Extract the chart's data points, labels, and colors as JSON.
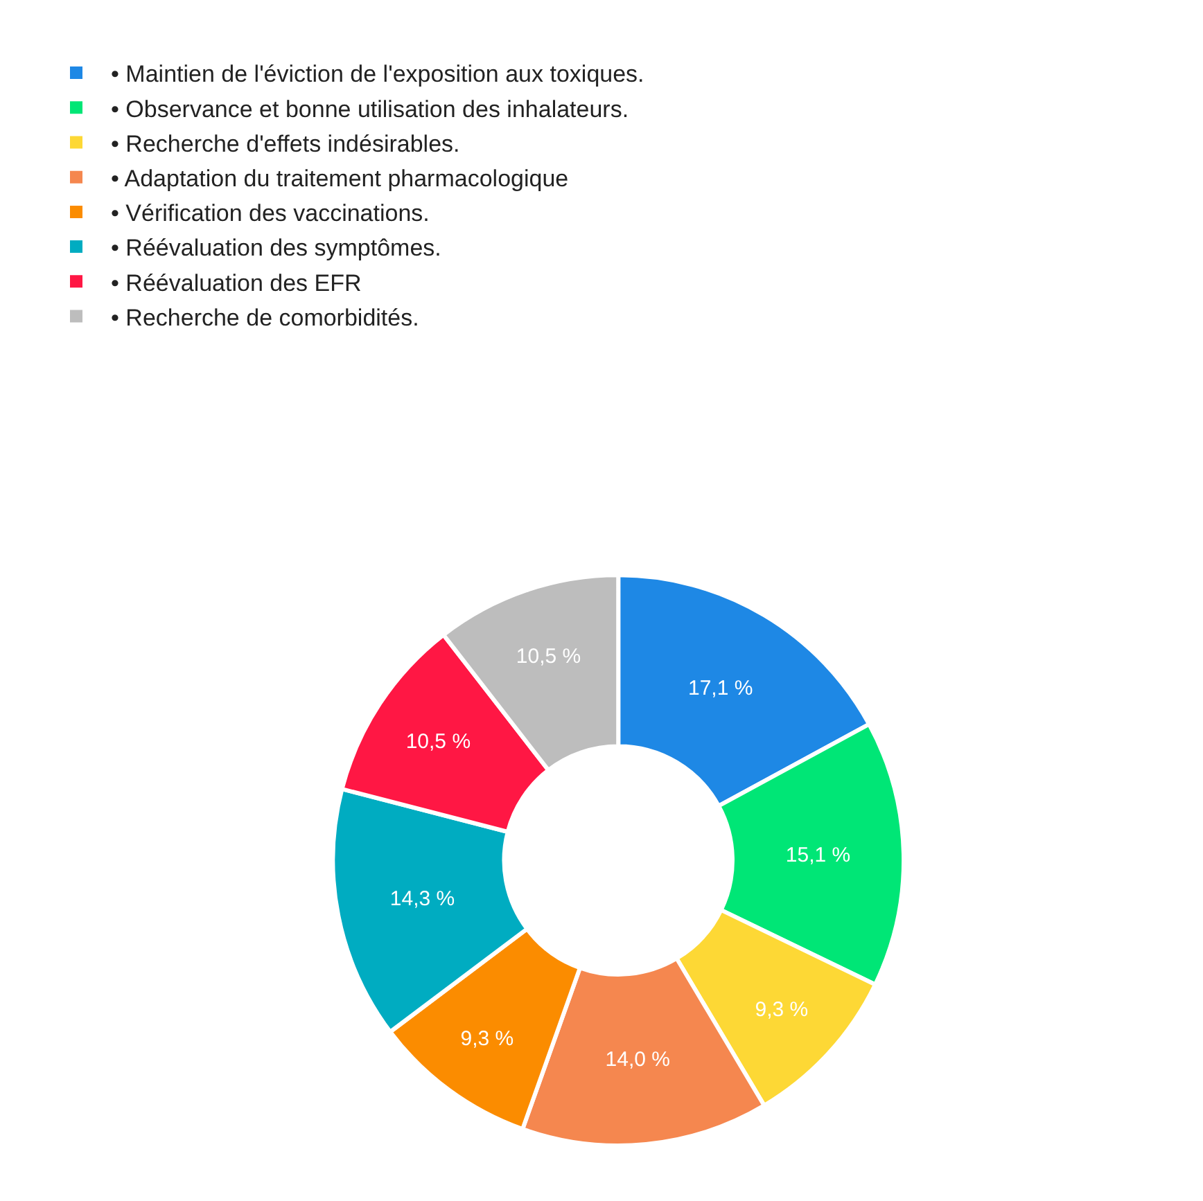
{
  "chart_data": {
    "type": "donut",
    "categories": [
      "• Maintien de l'éviction de l'exposition aux toxiques.",
      "• Observance et bonne utilisation des inhalateurs.",
      "• Recherche d'effets indésirables.",
      "• Adaptation du traitement pharmacologique",
      "• Vérification des vaccinations.",
      "• Réévaluation des symptômes.",
      "• Réévaluation des EFR",
      "• Recherche de comorbidités."
    ],
    "values": [
      17.1,
      15.1,
      9.3,
      14.0,
      9.3,
      14.3,
      10.5,
      10.5
    ],
    "value_labels": [
      "17,1 %",
      "15,1 %",
      "9,3 %",
      "14,0 %",
      "9,3 %",
      "14,3 %",
      "10,5 %",
      "10,5 %"
    ],
    "colors": [
      "#1e88e5",
      "#00e676",
      "#fdd835",
      "#f5874f",
      "#fb8c00",
      "#00acc1",
      "#ff1744",
      "#bdbdbd"
    ],
    "legend": "top left"
  }
}
